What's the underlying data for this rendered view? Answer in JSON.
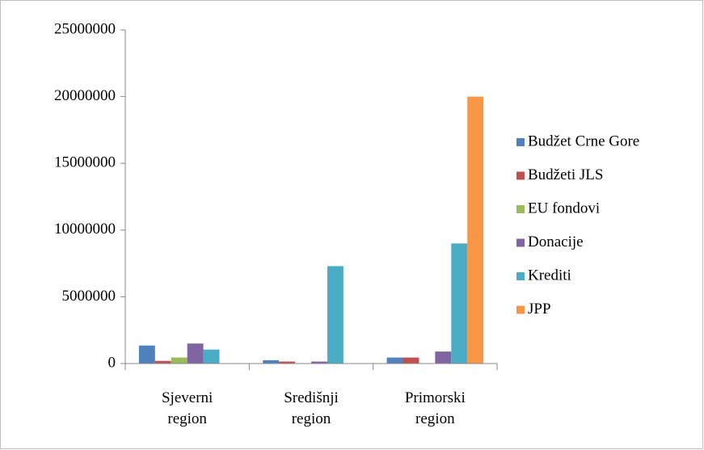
{
  "chart_data": {
    "type": "bar",
    "categories": [
      "Sjeverni region",
      "Središnji region",
      "Primorski region"
    ],
    "series": [
      {
        "name": "Budžet Crne Gore",
        "color": "#4f81bd",
        "values": [
          1350000,
          250000,
          450000
        ]
      },
      {
        "name": "Budžeti JLS",
        "color": "#c0504d",
        "values": [
          200000,
          150000,
          450000
        ]
      },
      {
        "name": "EU fondovi",
        "color": "#9bbb59",
        "values": [
          450000,
          0,
          0
        ]
      },
      {
        "name": "Donacije",
        "color": "#8064a2",
        "values": [
          1500000,
          150000,
          900000
        ]
      },
      {
        "name": "Krediti",
        "color": "#4bacc6",
        "values": [
          1050000,
          7300000,
          9000000
        ]
      },
      {
        "name": "JPP",
        "color": "#f79646",
        "values": [
          0,
          0,
          20000000
        ]
      }
    ],
    "ylim": [
      0,
      25000000
    ],
    "yticks": [
      0,
      5000000,
      10000000,
      15000000,
      20000000,
      25000000
    ],
    "grid": false,
    "legend": "right"
  }
}
